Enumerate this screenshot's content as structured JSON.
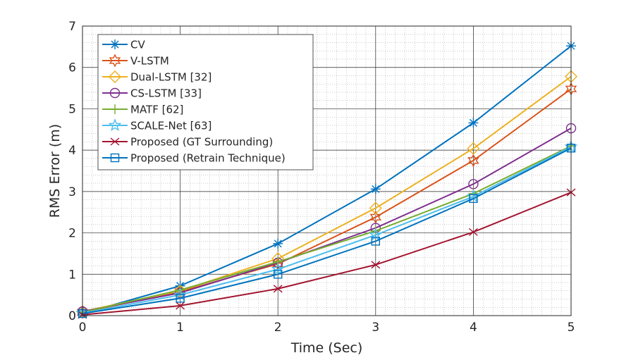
{
  "chart_data": {
    "type": "line",
    "title": "",
    "xlabel": "Time (Sec)",
    "ylabel": "RMS Error (m)",
    "xlim": [
      0,
      5
    ],
    "ylim": [
      0,
      7
    ],
    "xticks": [
      0,
      1,
      2,
      3,
      4,
      5
    ],
    "yticks": [
      0,
      1,
      2,
      3,
      4,
      5,
      6,
      7
    ],
    "grid": "major and minor",
    "legend_position": "top-left",
    "x": [
      0,
      1,
      2,
      3,
      4,
      5
    ],
    "series": [
      {
        "name": "CV",
        "color": "#0072BD",
        "marker": "asterisk",
        "values": [
          0.05,
          0.72,
          1.74,
          3.06,
          4.66,
          6.52
        ]
      },
      {
        "name": "V-LSTM",
        "color": "#D95319",
        "marker": "hexagram",
        "values": [
          0.08,
          0.58,
          1.25,
          2.38,
          3.75,
          5.48
        ]
      },
      {
        "name": "Dual-LSTM [32]",
        "color": "#EDB120",
        "marker": "diamond",
        "values": [
          0.1,
          0.6,
          1.38,
          2.6,
          4.04,
          5.78
        ]
      },
      {
        "name": "CS-LSTM [33]",
        "color": "#7E2F8E",
        "marker": "circle",
        "values": [
          0.1,
          0.55,
          1.28,
          2.12,
          3.18,
          4.53
        ]
      },
      {
        "name": "MATF [62]",
        "color": "#77AC30",
        "marker": "plus",
        "values": [
          0.08,
          0.62,
          1.3,
          2.05,
          2.95,
          4.1
        ]
      },
      {
        "name": "SCALE-Net [63]",
        "color": "#4DBEEE",
        "marker": "pentagram",
        "values": [
          0.06,
          0.5,
          1.12,
          1.95,
          2.88,
          4.08
        ]
      },
      {
        "name": "Proposed (GT Surrounding)",
        "color": "#A2142F",
        "marker": "x",
        "values": [
          0.02,
          0.24,
          0.65,
          1.23,
          2.02,
          2.98
        ]
      },
      {
        "name": "Proposed (Retrain Technique)",
        "color": "#0072BD",
        "marker": "square",
        "values": [
          0.05,
          0.42,
          1.0,
          1.8,
          2.83,
          4.05
        ]
      }
    ]
  }
}
